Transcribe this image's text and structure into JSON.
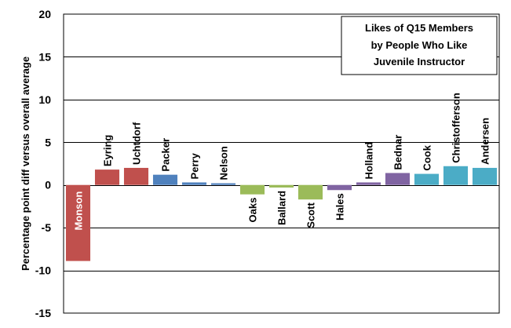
{
  "chart_data": {
    "type": "bar",
    "title": [
      "Likes of Q15 Members",
      "by People  Who Like",
      "Juvenile Instructor"
    ],
    "ylabel": "Percentage point diff versus overall average",
    "xlabel": "",
    "ylim": [
      -15,
      20
    ],
    "yticks": [
      20,
      15,
      10,
      5,
      0,
      -5,
      -10,
      -15
    ],
    "grid": true,
    "legend": "none",
    "title_box_position": "top-right",
    "categories": [
      "Monson",
      "Eyring",
      "Uchtdorf",
      "Packer",
      "Perry",
      "Nelson",
      "Oaks",
      "Ballard",
      "Scott",
      "Hales",
      "Holland",
      "Bednar",
      "Cook",
      "Christofferson",
      "Andersen"
    ],
    "values": [
      -8.9,
      1.8,
      2.0,
      1.2,
      0.3,
      0.2,
      -1.1,
      -0.3,
      -1.7,
      -0.6,
      0.3,
      1.4,
      1.3,
      2.2,
      2.0
    ],
    "colors": [
      "#c0504d",
      "#c0504d",
      "#c0504d",
      "#4f81bd",
      "#4f81bd",
      "#4f81bd",
      "#9bbb59",
      "#9bbb59",
      "#9bbb59",
      "#8064a2",
      "#8064a2",
      "#8064a2",
      "#4bacc6",
      "#4bacc6",
      "#4bacc6"
    ],
    "label_color_inside": "#ffffff",
    "label_color_outside": "#000000"
  }
}
